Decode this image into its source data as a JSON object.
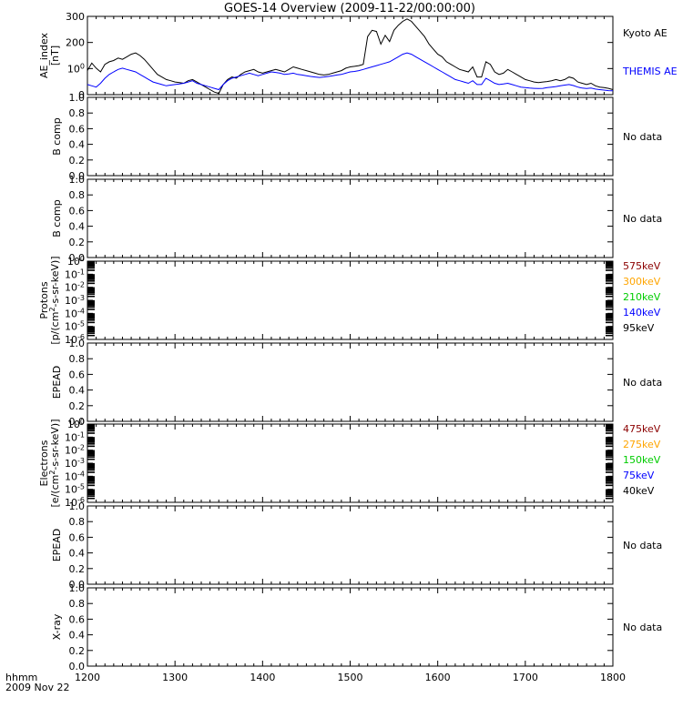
{
  "title": "GOES-14 Overview (2009-11-22/00:00:00)",
  "footer": {
    "line1": "hhmm",
    "line2": "2009 Nov 22"
  },
  "time_axis": {
    "ticks": [
      "1200",
      "1300",
      "1400",
      "1500",
      "1600",
      "1700",
      "1800"
    ],
    "range": [
      1200,
      1800
    ]
  },
  "colors": {
    "axes": "#000000",
    "kyoto": "#000000",
    "themis": "#0000ff"
  },
  "chart_data": [
    {
      "type": "line",
      "panel": "ae",
      "ylabel": [
        "AE_index",
        "[nT]"
      ],
      "yticks": [
        "0",
        "100",
        "200",
        "300"
      ],
      "ylim": [
        0,
        310
      ],
      "series": [
        {
          "name": "Kyoto AE",
          "color": "#000000",
          "x": [
            1200,
            1205,
            1210,
            1215,
            1220,
            1225,
            1230,
            1235,
            1240,
            1245,
            1250,
            1255,
            1260,
            1265,
            1270,
            1275,
            1280,
            1285,
            1290,
            1295,
            1300,
            1305,
            1310,
            1315,
            1320,
            1325,
            1330,
            1335,
            1340,
            1345,
            1350,
            1355,
            1360,
            1365,
            1370,
            1375,
            1380,
            1385,
            1390,
            1395,
            1400,
            1405,
            1410,
            1415,
            1420,
            1425,
            1430,
            1435,
            1440,
            1445,
            1450,
            1455,
            1460,
            1465,
            1470,
            1475,
            1480,
            1485,
            1490,
            1495,
            1500,
            1505,
            1510,
            1515,
            1520,
            1525,
            1530,
            1535,
            1540,
            1545,
            1550,
            1555,
            1560,
            1565,
            1570,
            1575,
            1580,
            1585,
            1590,
            1595,
            1600,
            1605,
            1610,
            1615,
            1620,
            1625,
            1630,
            1635,
            1640,
            1645,
            1650,
            1655,
            1660,
            1665,
            1670,
            1675,
            1680,
            1685,
            1690,
            1695,
            1700,
            1705,
            1710,
            1715,
            1720,
            1725,
            1730,
            1735,
            1740,
            1745,
            1750,
            1755,
            1760,
            1765,
            1770,
            1775,
            1780,
            1785,
            1790,
            1795,
            1800
          ],
          "values": [
            95,
            125,
            105,
            90,
            120,
            130,
            135,
            145,
            140,
            150,
            160,
            165,
            155,
            140,
            120,
            100,
            80,
            70,
            60,
            55,
            50,
            48,
            45,
            55,
            60,
            50,
            40,
            30,
            20,
            10,
            5,
            40,
            60,
            70,
            65,
            80,
            90,
            95,
            100,
            90,
            85,
            90,
            95,
            100,
            95,
            90,
            100,
            110,
            105,
            100,
            95,
            90,
            85,
            80,
            78,
            80,
            85,
            90,
            95,
            105,
            110,
            112,
            115,
            120,
            230,
            255,
            250,
            200,
            235,
            210,
            255,
            275,
            290,
            300,
            290,
            270,
            250,
            230,
            200,
            180,
            160,
            150,
            130,
            120,
            110,
            100,
            95,
            90,
            110,
            70,
            70,
            130,
            120,
            90,
            80,
            85,
            100,
            90,
            80,
            70,
            60,
            55,
            50,
            48,
            50,
            52,
            55,
            60,
            55,
            60,
            70,
            65,
            50,
            45,
            40,
            45,
            35,
            30,
            28,
            25,
            20
          ]
        },
        {
          "name": "THEMIS AE",
          "color": "#0000ff",
          "x": [
            1200,
            1205,
            1210,
            1215,
            1220,
            1225,
            1230,
            1235,
            1240,
            1245,
            1250,
            1255,
            1260,
            1265,
            1270,
            1275,
            1280,
            1285,
            1290,
            1295,
            1300,
            1305,
            1310,
            1315,
            1320,
            1325,
            1330,
            1335,
            1340,
            1345,
            1350,
            1355,
            1360,
            1365,
            1370,
            1375,
            1380,
            1385,
            1390,
            1395,
            1400,
            1405,
            1410,
            1415,
            1420,
            1425,
            1430,
            1435,
            1440,
            1445,
            1450,
            1455,
            1460,
            1465,
            1470,
            1475,
            1480,
            1485,
            1490,
            1495,
            1500,
            1505,
            1510,
            1515,
            1520,
            1525,
            1530,
            1535,
            1540,
            1545,
            1550,
            1555,
            1560,
            1565,
            1570,
            1575,
            1580,
            1585,
            1590,
            1595,
            1600,
            1605,
            1610,
            1615,
            1620,
            1625,
            1630,
            1635,
            1640,
            1645,
            1650,
            1655,
            1660,
            1665,
            1670,
            1675,
            1680,
            1685,
            1690,
            1695,
            1700,
            1705,
            1710,
            1715,
            1720,
            1725,
            1730,
            1735,
            1740,
            1745,
            1750,
            1755,
            1760,
            1765,
            1770,
            1775,
            1780,
            1785,
            1790,
            1795,
            1800
          ],
          "values": [
            40,
            35,
            30,
            45,
            65,
            80,
            90,
            100,
            105,
            100,
            95,
            90,
            80,
            70,
            60,
            50,
            45,
            40,
            35,
            38,
            40,
            42,
            45,
            50,
            55,
            45,
            40,
            35,
            30,
            25,
            20,
            40,
            55,
            65,
            70,
            75,
            80,
            85,
            80,
            75,
            80,
            85,
            90,
            88,
            85,
            80,
            82,
            85,
            80,
            78,
            75,
            72,
            70,
            68,
            70,
            72,
            75,
            78,
            80,
            85,
            90,
            92,
            95,
            100,
            105,
            110,
            115,
            120,
            125,
            130,
            140,
            150,
            160,
            165,
            160,
            150,
            140,
            130,
            120,
            110,
            100,
            90,
            80,
            70,
            60,
            55,
            50,
            45,
            55,
            40,
            40,
            65,
            55,
            45,
            40,
            42,
            45,
            40,
            35,
            30,
            28,
            26,
            25,
            24,
            25,
            28,
            30,
            32,
            35,
            38,
            40,
            36,
            30,
            26,
            24,
            26,
            22,
            20,
            18,
            16,
            15
          ]
        }
      ]
    },
    {
      "type": "line",
      "panel": "bcomp1",
      "ylabel": [
        "B comp"
      ],
      "yticks": [
        "0.0",
        "0.2",
        "0.4",
        "0.6",
        "0.8",
        "1.0"
      ],
      "ylim": [
        0,
        1
      ],
      "status": "No data",
      "series": []
    },
    {
      "type": "line",
      "panel": "bcomp2",
      "ylabel": [
        "B comp"
      ],
      "yticks": [
        "0.0",
        "0.2",
        "0.4",
        "0.6",
        "0.8",
        "1.0"
      ],
      "ylim": [
        0,
        1
      ],
      "status": "No data",
      "series": []
    },
    {
      "type": "line",
      "panel": "protons",
      "ylabel": [
        "Protons",
        "[p/(cm2-s-sr-keV)]"
      ],
      "yscale": "log",
      "yticks": [
        "10-6",
        "10-5",
        "10-4",
        "10-3",
        "10-2",
        "10-1",
        "100"
      ],
      "ylim": [
        1e-06,
        1
      ],
      "legend": [
        {
          "label": "575keV",
          "color": "#8b0000"
        },
        {
          "label": "300keV",
          "color": "#ffa500"
        },
        {
          "label": "210keV",
          "color": "#00cc00"
        },
        {
          "label": "140keV",
          "color": "#0000ff"
        },
        {
          "label": "95keV",
          "color": "#000000"
        }
      ],
      "series": []
    },
    {
      "type": "line",
      "panel": "epead1",
      "ylabel": [
        "EPEAD"
      ],
      "yticks": [
        "0.0",
        "0.2",
        "0.4",
        "0.6",
        "0.8",
        "1.0"
      ],
      "ylim": [
        0,
        1
      ],
      "status": "No data",
      "series": []
    },
    {
      "type": "line",
      "panel": "electrons",
      "ylabel": [
        "Electrons",
        "[e/(cm2-s-sr-keV)]"
      ],
      "yscale": "log",
      "yticks": [
        "10-6",
        "10-5",
        "10-4",
        "10-3",
        "10-2",
        "10-1",
        "100"
      ],
      "ylim": [
        1e-06,
        1
      ],
      "legend": [
        {
          "label": "475keV",
          "color": "#8b0000"
        },
        {
          "label": "275keV",
          "color": "#ffa500"
        },
        {
          "label": "150keV",
          "color": "#00cc00"
        },
        {
          "label": "75keV",
          "color": "#0000ff"
        },
        {
          "label": "40keV",
          "color": "#000000"
        }
      ],
      "series": []
    },
    {
      "type": "line",
      "panel": "epead2",
      "ylabel": [
        "EPEAD"
      ],
      "yticks": [
        "0.0",
        "0.2",
        "0.4",
        "0.6",
        "0.8",
        "1.0"
      ],
      "ylim": [
        0,
        1
      ],
      "status": "No data",
      "series": []
    },
    {
      "type": "line",
      "panel": "xray",
      "ylabel": [
        "X-ray"
      ],
      "yticks": [
        "0.0",
        "0.2",
        "0.4",
        "0.6",
        "0.8",
        "1.0"
      ],
      "ylim": [
        0,
        1
      ],
      "status": "No data",
      "series": []
    }
  ]
}
